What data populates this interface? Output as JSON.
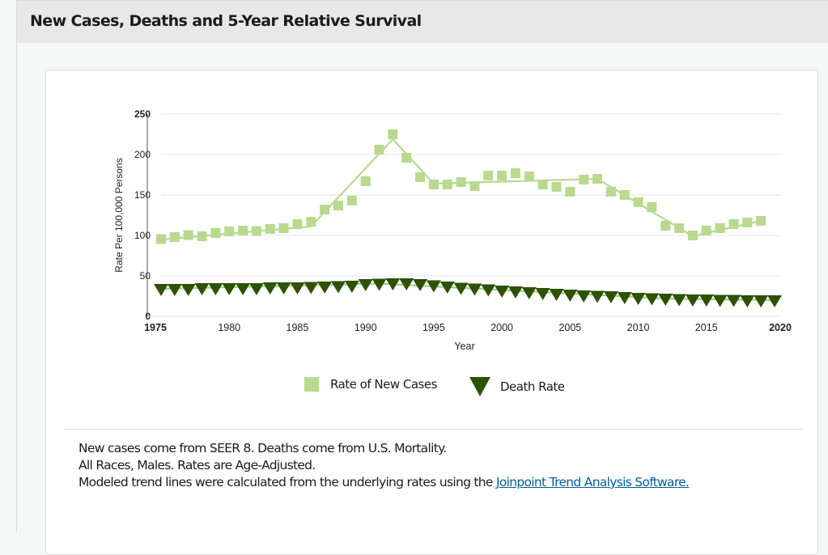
{
  "panel": {
    "title": "New Cases, Deaths and 5-Year Relative Survival"
  },
  "chart_data": {
    "type": "scatter",
    "title": "",
    "xlabel": "Year",
    "ylabel": "Rate Per 100,000 Persons",
    "xlim": [
      1975,
      2020
    ],
    "ylim": [
      0,
      250
    ],
    "x_ticks": [
      "1975",
      "1980",
      "1985",
      "1990",
      "1995",
      "2000",
      "2005",
      "2010",
      "2015",
      "2020"
    ],
    "y_ticks": [
      "0",
      "50",
      "100",
      "150",
      "200",
      "250"
    ],
    "grid": true,
    "legend_position": "bottom-center",
    "series": [
      {
        "name": "Rate of New Cases",
        "marker": "square",
        "color": "#b9d98f",
        "x": [
          1975,
          1976,
          1977,
          1978,
          1979,
          1980,
          1981,
          1982,
          1983,
          1984,
          1985,
          1986,
          1987,
          1988,
          1989,
          1990,
          1991,
          1992,
          1993,
          1994,
          1995,
          1996,
          1997,
          1998,
          1999,
          2000,
          2001,
          2002,
          2003,
          2004,
          2005,
          2006,
          2007,
          2008,
          2009,
          2010,
          2011,
          2012,
          2013,
          2014,
          2015,
          2016,
          2017,
          2018,
          2019
        ],
        "values": [
          95.5,
          98,
          100.5,
          99,
          103,
          105,
          106,
          105.5,
          108,
          109,
          114,
          117,
          132,
          137,
          143,
          167,
          206,
          225,
          196,
          172,
          163,
          163,
          166,
          161,
          174,
          174,
          177,
          173,
          163,
          160,
          154,
          169,
          170,
          154,
          150,
          141,
          135,
          112,
          109,
          100,
          106,
          109,
          114,
          116,
          118
        ],
        "trend": {
          "x": [
            1975,
            1986,
            1992,
            1995,
            2007,
            2014,
            2019
          ],
          "values": [
            95,
            111,
            219,
            164,
            170,
            99,
            118
          ]
        }
      },
      {
        "name": "Death Rate",
        "marker": "triangle-down",
        "color": "#2e5205",
        "x": [
          1975,
          1976,
          1977,
          1978,
          1979,
          1980,
          1981,
          1982,
          1983,
          1984,
          1985,
          1986,
          1987,
          1988,
          1989,
          1990,
          1991,
          1992,
          1993,
          1994,
          1995,
          1996,
          1997,
          1998,
          1999,
          2000,
          2001,
          2002,
          2003,
          2004,
          2005,
          2006,
          2007,
          2008,
          2009,
          2010,
          2011,
          2012,
          2013,
          2014,
          2015,
          2016,
          2017,
          2018,
          2019,
          2020
        ],
        "values": [
          34,
          34,
          34,
          35,
          35,
          35,
          35,
          35,
          36,
          36,
          36,
          36.5,
          37,
          37.5,
          38,
          40,
          40.5,
          41,
          41,
          40,
          38.5,
          37,
          35.5,
          34.5,
          33.5,
          32,
          31,
          30,
          29,
          28,
          27,
          26,
          25.5,
          25,
          24,
          23,
          22.5,
          22,
          21.5,
          21,
          21,
          20.5,
          20.5,
          20,
          20,
          20
        ],
        "trend": {
          "x": [
            1975,
            1991,
            2012,
            2020
          ],
          "values": [
            34,
            40.5,
            22,
            20
          ]
        }
      }
    ]
  },
  "notes": {
    "line1": "New cases come from SEER 8. Deaths come from U.S. Mortality.",
    "line2": "All Races, Males. Rates are Age-Adjusted.",
    "line3": "Modeled trend lines were calculated from the underlying rates using the ",
    "link": "Joinpoint Trend Analysis Software."
  }
}
